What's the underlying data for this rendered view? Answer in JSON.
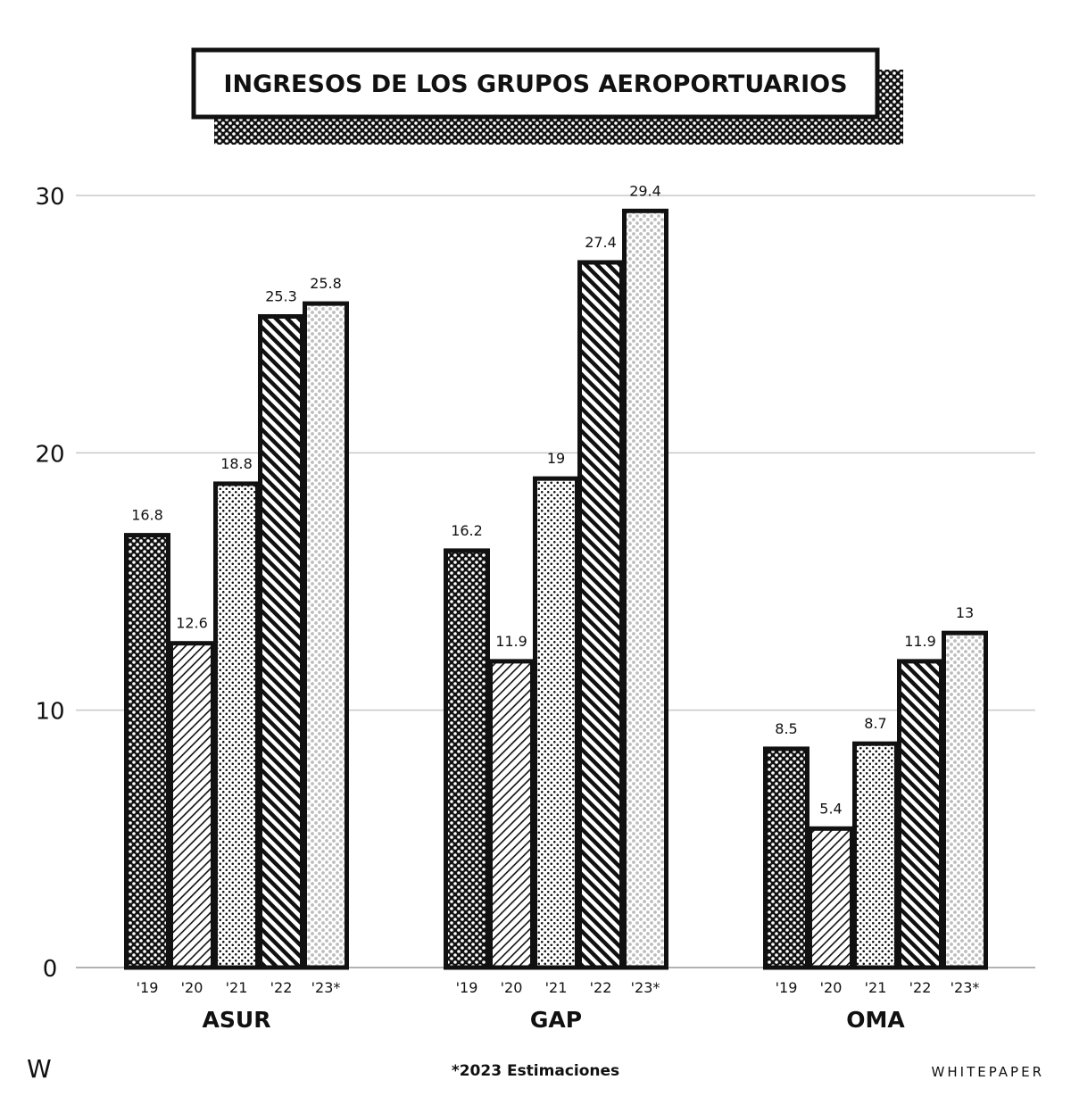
{
  "chart_data": {
    "type": "bar",
    "title": "INGRESOS DE LOS GRUPOS AEROPORTUARIOS",
    "groups": [
      "ASUR",
      "GAP",
      "OMA"
    ],
    "categories": [
      "'19",
      "'20",
      "'21",
      "'22",
      "'23*"
    ],
    "series": [
      {
        "group": "ASUR",
        "values": [
          16.8,
          12.6,
          18.8,
          25.3,
          25.8
        ],
        "labels": [
          "16.8",
          "12.6",
          "18.8",
          "25.3",
          "25.8"
        ]
      },
      {
        "group": "GAP",
        "values": [
          16.2,
          11.9,
          19,
          27.4,
          29.4
        ],
        "labels": [
          "16.2",
          "11.9",
          "19",
          "27.4",
          "29.4"
        ]
      },
      {
        "group": "OMA",
        "values": [
          8.5,
          5.4,
          8.7,
          11.9,
          13
        ],
        "labels": [
          "8.5",
          "5.4",
          "8.7",
          "11.9",
          "13"
        ]
      }
    ],
    "yticks": [
      "0",
      "10",
      "20",
      "30"
    ],
    "ylim": [
      0,
      30
    ],
    "grid": true,
    "patterns": [
      "checker",
      "thin-hatch",
      "dots",
      "thick-hatch",
      "light-gray-dots"
    ],
    "footnote": "*2023 Estimaciones"
  },
  "branding": {
    "logo": "W",
    "name": "WHITEPAPER"
  },
  "colors": {
    "ink": "#111111",
    "grid": "#c8c8c8",
    "light_dot": "#bdbdbd"
  }
}
